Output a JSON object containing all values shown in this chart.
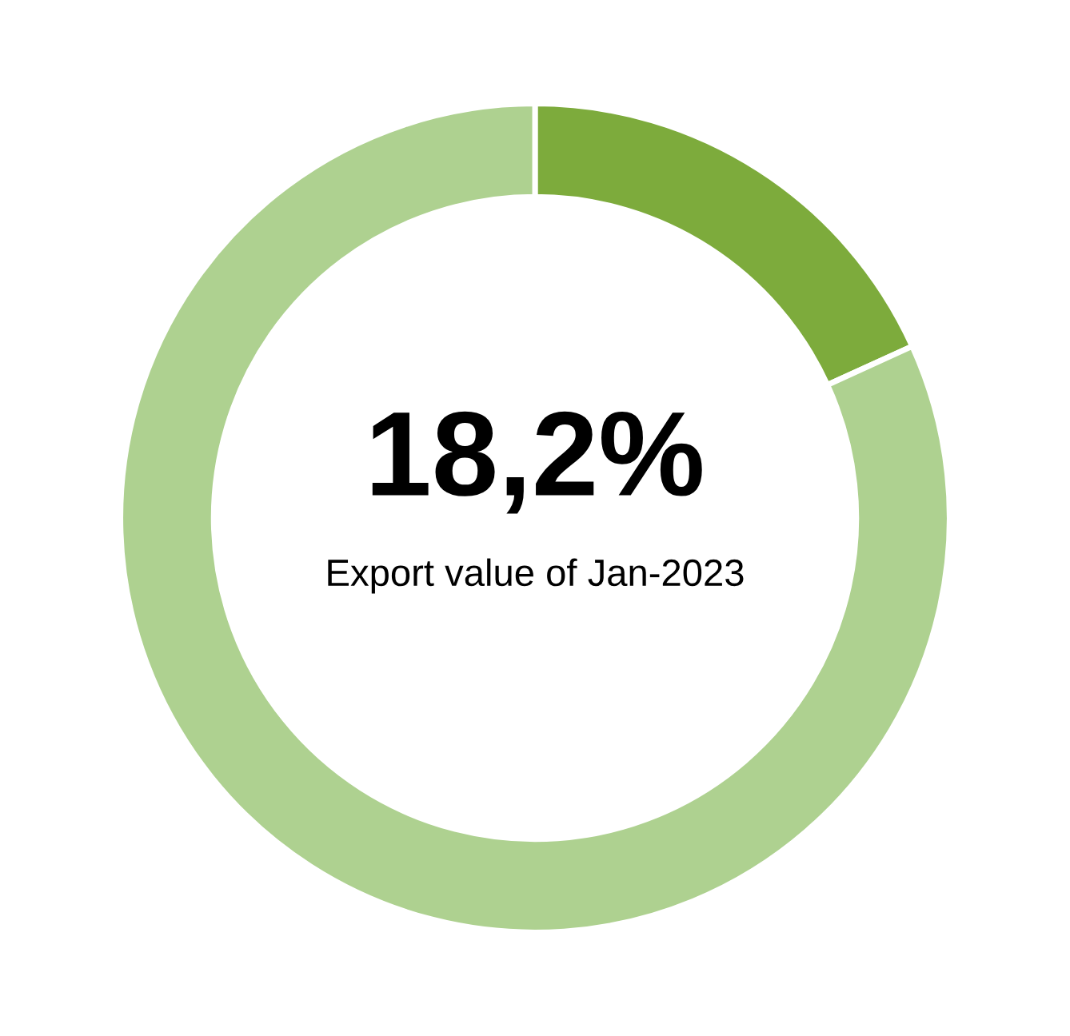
{
  "chart_data": {
    "type": "donut",
    "categories": [
      null,
      null
    ],
    "values": [
      18.2,
      81.8
    ],
    "colors": [
      "#7dab3c",
      "#aed190"
    ],
    "annotations": [
      "18,2%",
      "Export value of Jan-2023"
    ]
  }
}
